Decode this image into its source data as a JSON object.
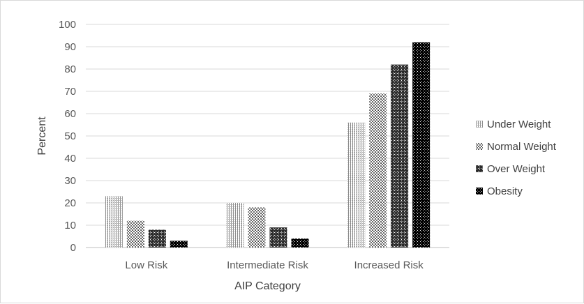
{
  "chart_data": {
    "type": "bar",
    "title": "",
    "xlabel": "AIP Category",
    "ylabel": "Percent",
    "ylim": [
      0,
      100
    ],
    "yticks": [
      0,
      10,
      20,
      30,
      40,
      50,
      60,
      70,
      80,
      90,
      100
    ],
    "grid": true,
    "legend_position": "right",
    "categories": [
      "Low Risk",
      "Intermediate Risk",
      "Increased Risk"
    ],
    "series": [
      {
        "name": "Under Weight",
        "values": [
          23,
          20,
          56
        ],
        "pattern": "pattern-under-weight",
        "color": "#bfbfbf"
      },
      {
        "name": "Normal Weight",
        "values": [
          12,
          18,
          69
        ],
        "pattern": "pattern-normal-weight",
        "color": "#7f7f7f"
      },
      {
        "name": "Over Weight",
        "values": [
          8,
          9,
          82
        ],
        "pattern": "pattern-over-weight",
        "color": "#404040"
      },
      {
        "name": "Obesity",
        "values": [
          3,
          4,
          92
        ],
        "pattern": "pattern-obesity",
        "color": "#000000"
      }
    ]
  }
}
